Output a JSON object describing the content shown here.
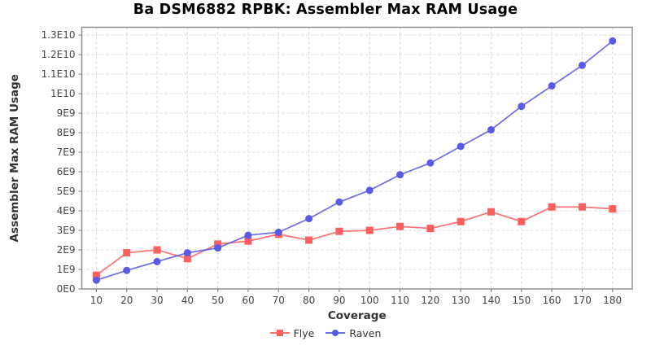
{
  "title": "Ba DSM6882 RPBK: Assembler Max RAM Usage",
  "chart_data": {
    "type": "line",
    "title": "Ba DSM6882 RPBK: Assembler Max RAM Usage",
    "xlabel": "Coverage",
    "ylabel": "Assembler Max RAM Usage",
    "grid": true,
    "legend_position": "bottom",
    "xlim": [
      5.2,
      186.5
    ],
    "ylim": [
      0,
      13400000000.0
    ],
    "x_ticks": [
      10,
      20,
      30,
      40,
      50,
      60,
      70,
      80,
      90,
      100,
      110,
      120,
      130,
      140,
      150,
      160,
      170,
      180
    ],
    "x_tick_labels": [
      "10",
      "20",
      "30",
      "40",
      "50",
      "60",
      "70",
      "80",
      "90",
      "100",
      "110",
      "120",
      "130",
      "140",
      "150",
      "160",
      "170",
      "180"
    ],
    "y_ticks": [
      0,
      1000000000.0,
      2000000000.0,
      3000000000.0,
      4000000000.0,
      5000000000.0,
      6000000000.0,
      7000000000.0,
      8000000000.0,
      9000000000.0,
      10000000000.0,
      11000000000.0,
      12000000000.0,
      13000000000.0
    ],
    "y_tick_labels": [
      "0E0",
      "1E9",
      "2E9",
      "3E9",
      "4E9",
      "5E9",
      "6E9",
      "7E9",
      "8E9",
      "9E9",
      "1E10",
      "1.1E10",
      "1.2E10",
      "1.3E10"
    ],
    "x": [
      10,
      20,
      30,
      40,
      50,
      60,
      70,
      80,
      90,
      100,
      110,
      120,
      130,
      140,
      150,
      160,
      170,
      180
    ],
    "series": [
      {
        "name": "Flye",
        "marker": "square",
        "color": "#fb5f5f",
        "values": [
          700000000.0,
          1850000000.0,
          2000000000.0,
          1550000000.0,
          2300000000.0,
          2450000000.0,
          2800000000.0,
          2500000000.0,
          2950000000.0,
          3000000000.0,
          3200000000.0,
          3100000000.0,
          3450000000.0,
          3950000000.0,
          3450000000.0,
          4200000000.0,
          4200000000.0,
          4100000000.0
        ]
      },
      {
        "name": "Raven",
        "marker": "circle",
        "color": "#5a5ae2",
        "values": [
          450000000.0,
          950000000.0,
          1400000000.0,
          1850000000.0,
          2100000000.0,
          2750000000.0,
          2900000000.0,
          3600000000.0,
          4450000000.0,
          5050000000.0,
          5850000000.0,
          6450000000.0,
          7300000000.0,
          8150000000.0,
          9350000000.0,
          10400000000.0,
          11450000000.0,
          12700000000.0
        ]
      }
    ]
  },
  "style_colors": {
    "gridline": "#d9d9d9",
    "plot_border": "#909090",
    "tick_mark": "#777777",
    "tick_label": "#444444",
    "axis_label": "#333333",
    "background": "#ffffff"
  }
}
